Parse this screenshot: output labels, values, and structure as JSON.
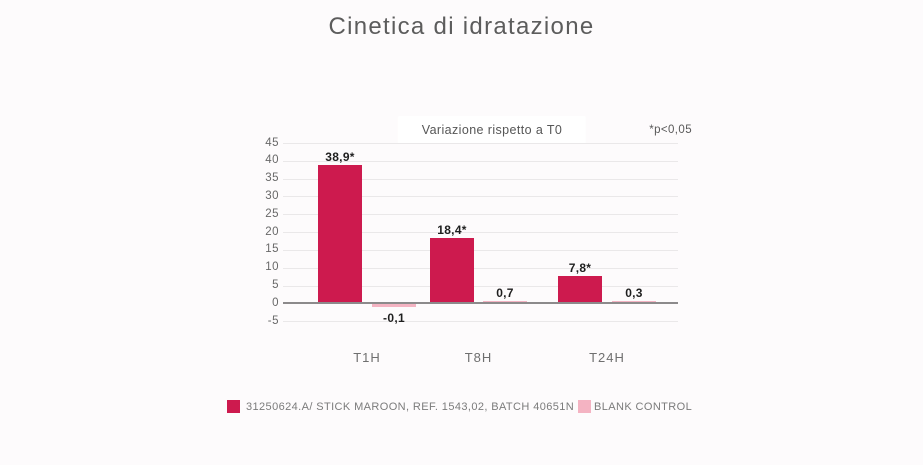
{
  "page": {
    "title": "Cinetica di idratazione"
  },
  "chart_data": {
    "type": "bar",
    "title": "Cinetica di idratazione",
    "subtitle": "Variazione rispetto a T0",
    "note": "*p<0,05",
    "categories": [
      "T1H",
      "T8H",
      "T24H"
    ],
    "series": [
      {
        "name": "31250624.A/ STICK MAROON, REF. 1543,02, BATCH 40651N",
        "color": "#cd1a4e",
        "values": [
          38.9,
          18.4,
          7.8
        ],
        "labels": [
          "38,9*",
          "18,4*",
          "7,8*"
        ]
      },
      {
        "name": "BLANK CONTROL",
        "color": "#f4b3c2",
        "values": [
          -0.1,
          0.7,
          0.3
        ],
        "labels": [
          "-0,1",
          "0,7",
          "0,3"
        ]
      }
    ],
    "ylim": [
      -5,
      45
    ],
    "ytick_step": 5,
    "yticks": [
      45,
      40,
      35,
      30,
      25,
      20,
      15,
      10,
      5,
      0,
      -5
    ],
    "grid": true,
    "legend_position": "bottom",
    "colors": {
      "background": "#fdfbfc",
      "subtitle_box": "#ffffff",
      "gridline": "#eae8e9",
      "axis_line": "#8c8a8b",
      "title_text": "#5c5c5c",
      "value_label_text": "#1f1f1f",
      "legend_text": "#7b7b7b"
    }
  }
}
